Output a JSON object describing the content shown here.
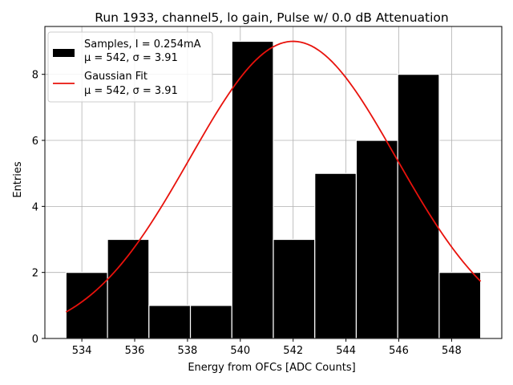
{
  "chart_data": {
    "type": "bar",
    "title": "Run 1933, channel5, lo gain, Pulse w/ 0.0 dB Attenuation",
    "xlabel": "Energy from OFCs [ADC Counts]",
    "ylabel": "Entries",
    "xlim": [
      532.6,
      549.9
    ],
    "ylim": [
      0,
      9.45
    ],
    "xticks": [
      534,
      536,
      538,
      540,
      542,
      544,
      546,
      548
    ],
    "yticks": [
      0,
      2,
      4,
      6,
      8
    ],
    "grid": true,
    "legend_position": "top-left",
    "histogram": {
      "name": "Samples",
      "bin_edges": [
        533.4,
        534.97,
        536.54,
        538.11,
        539.68,
        541.25,
        542.82,
        544.39,
        545.96,
        547.53,
        549.1
      ],
      "counts": [
        2,
        3,
        1,
        1,
        9,
        3,
        5,
        6,
        8,
        2
      ],
      "color": "#000000"
    },
    "fit": {
      "name": "Gaussian Fit",
      "mu": 542,
      "sigma": 3.91,
      "amplitude": 9.0,
      "x_range": [
        533.4,
        549.1
      ],
      "color": "#e8120c"
    },
    "legend": [
      {
        "line1": "Samples, I = 0.254mA",
        "line2": "μ = 542, σ = 3.91"
      },
      {
        "line1": "Gaussian Fit",
        "line2": "μ = 542, σ = 3.91"
      }
    ]
  }
}
